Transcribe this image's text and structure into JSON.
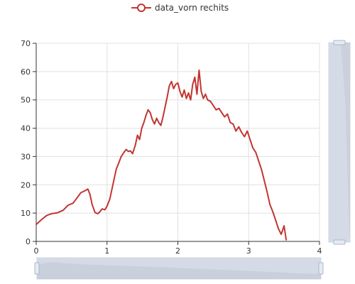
{
  "chart_data": {
    "type": "line",
    "title": "",
    "xlabel": "",
    "ylabel": "",
    "xlim": [
      0,
      4
    ],
    "ylim": [
      0,
      70
    ],
    "x_ticks": [
      "0",
      "1",
      "2",
      "3",
      "4"
    ],
    "y_ticks": [
      "0",
      "10",
      "20",
      "30",
      "40",
      "50",
      "60",
      "70"
    ],
    "grid": true,
    "legend_position": "top-center",
    "series": [
      {
        "name": "data_vorn rechits",
        "color": "#c23531",
        "points": [
          [
            0.0,
            6
          ],
          [
            0.08,
            7.8
          ],
          [
            0.15,
            9.2
          ],
          [
            0.22,
            9.8
          ],
          [
            0.3,
            10.1
          ],
          [
            0.38,
            11.0
          ],
          [
            0.45,
            12.8
          ],
          [
            0.52,
            13.5
          ],
          [
            0.58,
            15.5
          ],
          [
            0.63,
            17.2
          ],
          [
            0.68,
            17.8
          ],
          [
            0.73,
            18.5
          ],
          [
            0.76,
            16.5
          ],
          [
            0.79,
            13.0
          ],
          [
            0.83,
            10.2
          ],
          [
            0.87,
            9.8
          ],
          [
            0.9,
            10.5
          ],
          [
            0.93,
            11.5
          ],
          [
            0.97,
            11.2
          ],
          [
            1.0,
            12.5
          ],
          [
            1.04,
            15.0
          ],
          [
            1.07,
            18.5
          ],
          [
            1.1,
            22.0
          ],
          [
            1.13,
            25.5
          ],
          [
            1.17,
            28.0
          ],
          [
            1.2,
            30.0
          ],
          [
            1.24,
            31.5
          ],
          [
            1.27,
            32.5
          ],
          [
            1.3,
            31.8
          ],
          [
            1.33,
            32.0
          ],
          [
            1.36,
            31.0
          ],
          [
            1.4,
            34.0
          ],
          [
            1.43,
            37.5
          ],
          [
            1.46,
            36.0
          ],
          [
            1.49,
            40.0
          ],
          [
            1.52,
            42.0
          ],
          [
            1.55,
            44.5
          ],
          [
            1.58,
            46.5
          ],
          [
            1.61,
            45.5
          ],
          [
            1.64,
            43.0
          ],
          [
            1.67,
            41.5
          ],
          [
            1.7,
            43.5
          ],
          [
            1.73,
            42.0
          ],
          [
            1.76,
            41.0
          ],
          [
            1.79,
            44.0
          ],
          [
            1.82,
            47.5
          ],
          [
            1.85,
            51.0
          ],
          [
            1.88,
            55.0
          ],
          [
            1.91,
            56.5
          ],
          [
            1.94,
            54.0
          ],
          [
            1.97,
            55.5
          ],
          [
            2.0,
            56.0
          ],
          [
            2.03,
            53.0
          ],
          [
            2.06,
            51.0
          ],
          [
            2.09,
            53.5
          ],
          [
            2.12,
            50.5
          ],
          [
            2.15,
            52.5
          ],
          [
            2.18,
            50.0
          ],
          [
            2.21,
            55.5
          ],
          [
            2.24,
            58.0
          ],
          [
            2.27,
            52.0
          ],
          [
            2.3,
            60.5
          ],
          [
            2.33,
            53.0
          ],
          [
            2.36,
            50.5
          ],
          [
            2.39,
            52.0
          ],
          [
            2.42,
            50.0
          ],
          [
            2.46,
            49.5
          ],
          [
            2.5,
            48.0
          ],
          [
            2.54,
            46.5
          ],
          [
            2.58,
            47.0
          ],
          [
            2.62,
            45.5
          ],
          [
            2.66,
            44.0
          ],
          [
            2.7,
            45.0
          ],
          [
            2.74,
            42.0
          ],
          [
            2.78,
            41.5
          ],
          [
            2.82,
            39.0
          ],
          [
            2.86,
            40.5
          ],
          [
            2.9,
            38.5
          ],
          [
            2.94,
            37.0
          ],
          [
            2.98,
            39.0
          ],
          [
            3.02,
            36.0
          ],
          [
            3.06,
            33.0
          ],
          [
            3.1,
            31.5
          ],
          [
            3.14,
            28.5
          ],
          [
            3.18,
            25.5
          ],
          [
            3.22,
            21.5
          ],
          [
            3.26,
            17.5
          ],
          [
            3.3,
            13.0
          ],
          [
            3.34,
            10.5
          ],
          [
            3.38,
            7.5
          ],
          [
            3.42,
            4.5
          ],
          [
            3.46,
            2.5
          ],
          [
            3.5,
            5.5
          ],
          [
            3.53,
            0.5
          ]
        ]
      }
    ]
  }
}
